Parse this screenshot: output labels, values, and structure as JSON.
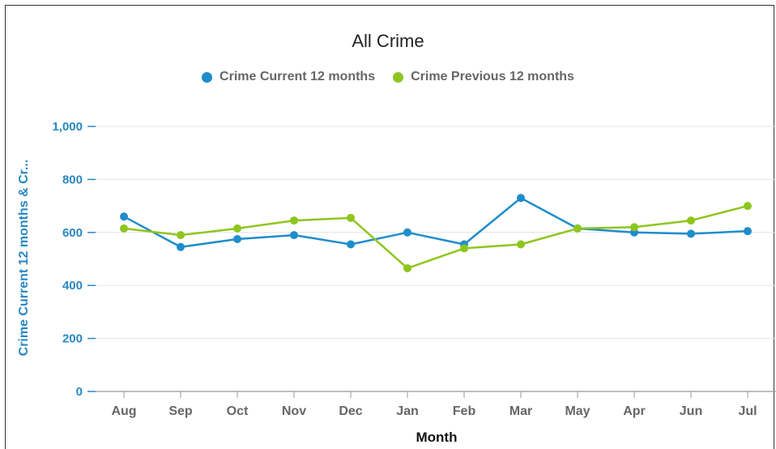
{
  "chart_data": {
    "type": "line",
    "title": "All Crime",
    "xlabel": "Month",
    "ylabel": "Crime Current 12 months & Cr...",
    "categories": [
      "Aug",
      "Sep",
      "Oct",
      "Nov",
      "Dec",
      "Jan",
      "Feb",
      "Mar",
      "May",
      "Apr",
      "Jun",
      "Jul"
    ],
    "ylim": [
      0,
      1000
    ],
    "yticks": [
      0,
      200,
      400,
      600,
      800,
      1000
    ],
    "ytick_labels": [
      "0",
      "200",
      "400",
      "600",
      "800",
      "1,000"
    ],
    "grid": true,
    "legend_position": "top-center",
    "series": [
      {
        "name": "Crime Current 12 months",
        "color": "#1f8dcb",
        "values": [
          660,
          545,
          575,
          590,
          555,
          600,
          555,
          730,
          615,
          600,
          595,
          605
        ]
      },
      {
        "name": "Crime Previous 12 months",
        "color": "#8ec61d",
        "values": [
          615,
          590,
          615,
          645,
          655,
          465,
          540,
          555,
          615,
          620,
          645,
          700
        ]
      }
    ]
  }
}
